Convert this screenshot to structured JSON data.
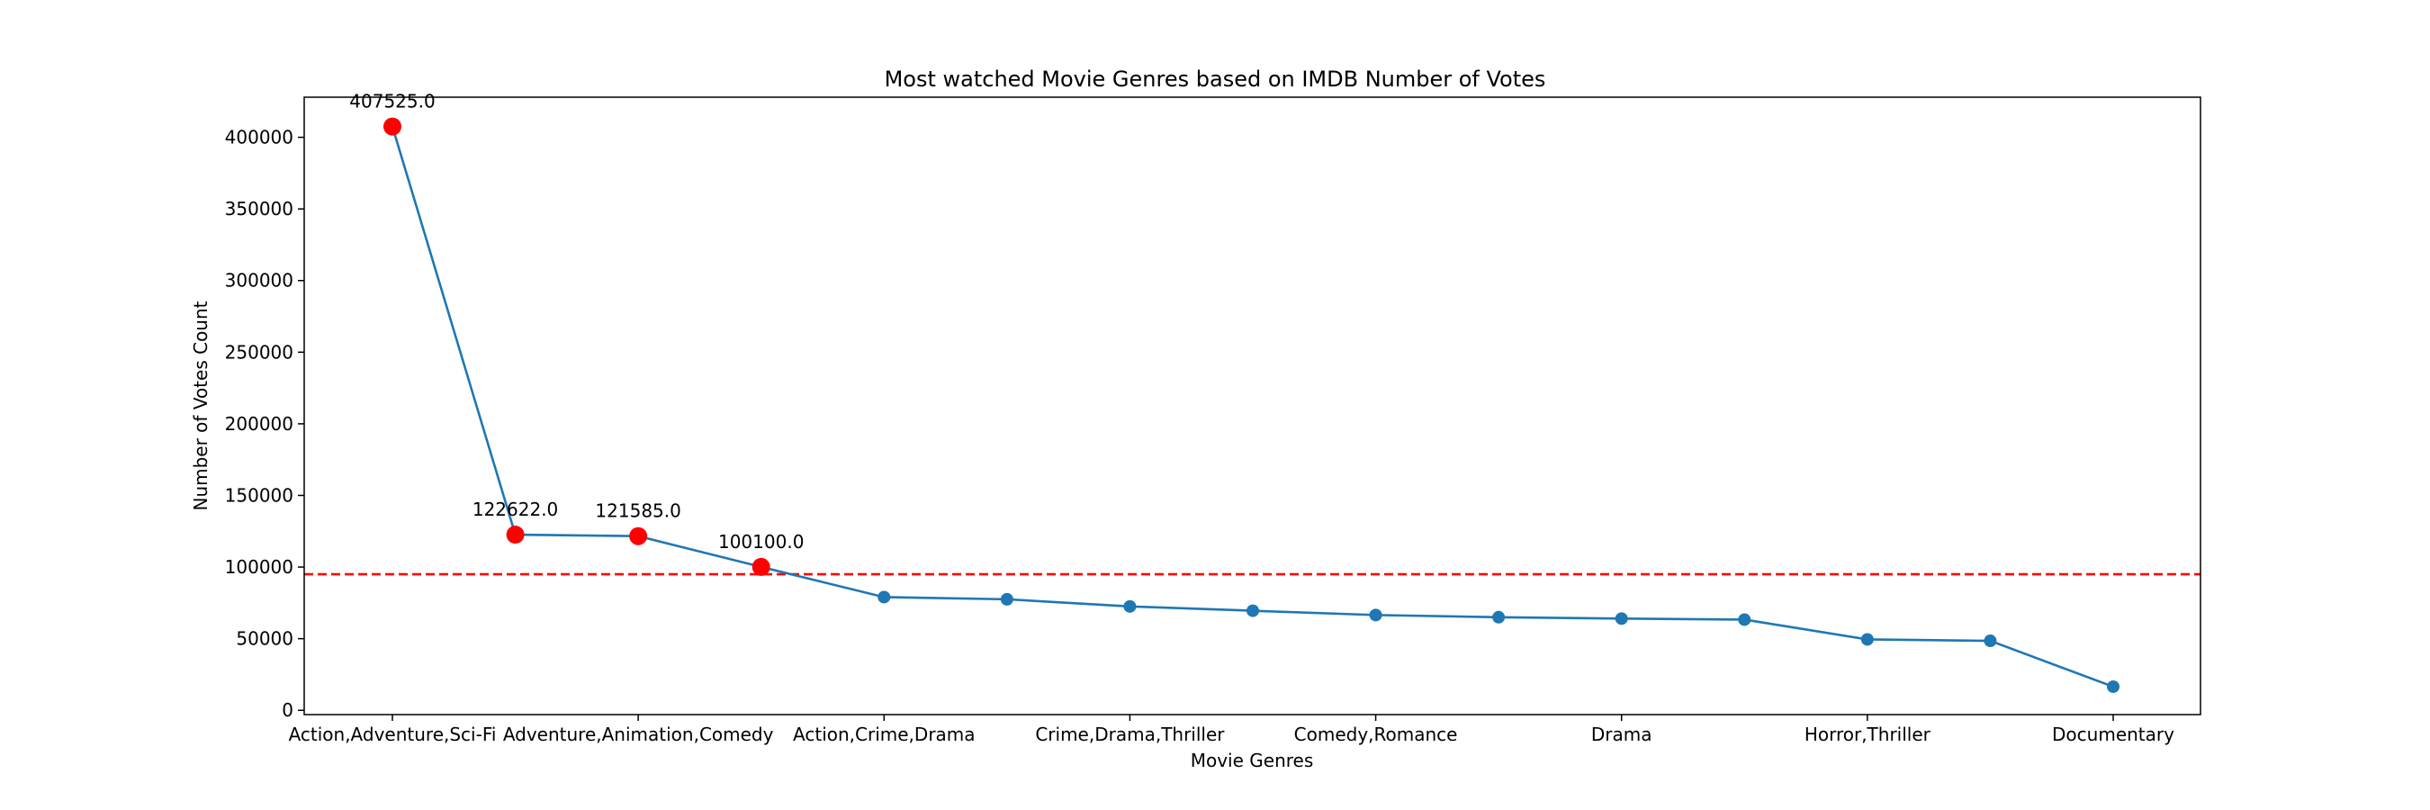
{
  "chart_data": {
    "type": "line",
    "title": "Most watched Movie Genres based on IMDB Number of Votes",
    "xlabel": "Movie Genres",
    "ylabel": "Number of Votes Count",
    "ylim": [
      -3000,
      428000
    ],
    "grid": false,
    "categories": [
      "Action,Adventure,Sci-Fi",
      "",
      "Adventure,Animation,Comedy",
      "",
      "Action,Crime,Drama",
      "",
      "Crime,Drama,Thriller",
      "",
      "Comedy,Romance",
      "",
      "Drama",
      "",
      "Horror,Thriller",
      "",
      "Documentary"
    ],
    "x_tick_labels": [
      {
        "index": 0,
        "label": "Action,Adventure,Sci-Fi"
      },
      {
        "index": 2,
        "label": "Adventure,Animation,Comedy"
      },
      {
        "index": 4,
        "label": "Action,Crime,Drama"
      },
      {
        "index": 6,
        "label": "Crime,Drama,Thriller"
      },
      {
        "index": 8,
        "label": "Comedy,Romance"
      },
      {
        "index": 10,
        "label": "Drama"
      },
      {
        "index": 12,
        "label": "Horror,Thriller"
      },
      {
        "index": 14,
        "label": "Documentary"
      }
    ],
    "y_ticks": [
      0,
      50000,
      100000,
      150000,
      200000,
      250000,
      300000,
      350000,
      400000
    ],
    "series": [
      {
        "values": [
          407525,
          122622,
          121585,
          100100,
          79000,
          77500,
          72500,
          69500,
          66500,
          65000,
          64000,
          63300,
          49500,
          48500,
          16500
        ],
        "color": "#1f77b4"
      }
    ],
    "highlighted_points": [
      {
        "index": 0,
        "value": 407525,
        "label": "407525.0"
      },
      {
        "index": 1,
        "value": 122622,
        "label": "122622.0"
      },
      {
        "index": 2,
        "value": 121585,
        "label": "121585.0"
      },
      {
        "index": 3,
        "value": 100100,
        "label": "100100.0"
      }
    ],
    "highlight_color": "#ff0000",
    "threshold": {
      "value": 95000,
      "color": "#ff0000",
      "style": "dashed"
    }
  }
}
